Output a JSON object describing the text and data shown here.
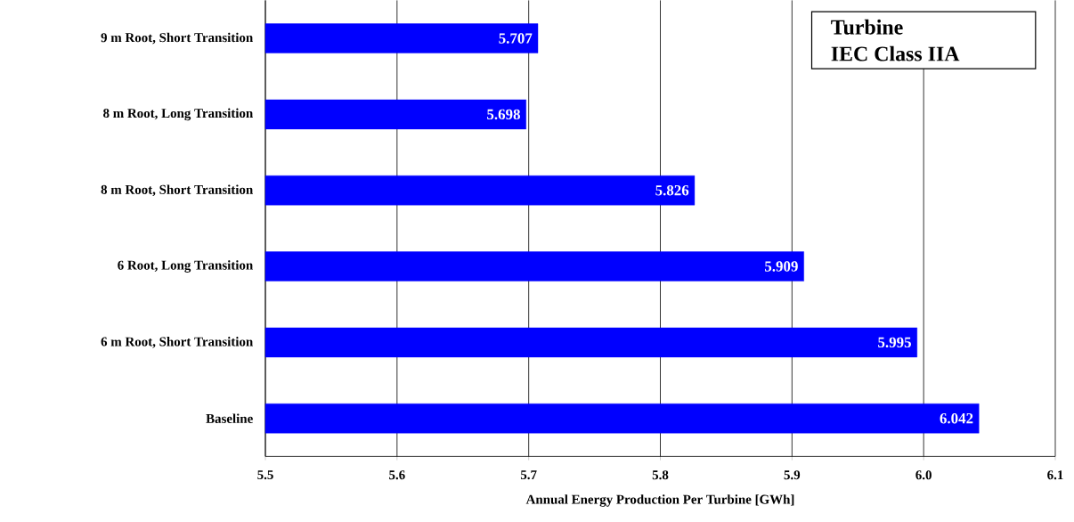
{
  "chart_data": {
    "type": "bar",
    "orientation": "horizontal",
    "xlabel": "Annual Energy Production Per Turbine [GWh]",
    "categories": [
      "9 m Root, Short Transition",
      "8 m Root, Long Transition",
      "8 m Root, Short Transition",
      "6 Root, Long Transition",
      "6 m Root, Short Transition",
      "Baseline"
    ],
    "values": [
      5.707,
      5.698,
      5.826,
      5.909,
      5.995,
      6.042
    ],
    "color": "#0000ff",
    "data_labels": true,
    "grid": "x",
    "xlim": [
      5.5,
      6.1
    ],
    "xticks": [
      {
        "value": 5.5,
        "label": "5.5"
      },
      {
        "value": 5.6,
        "label": "5.6"
      },
      {
        "value": 5.7,
        "label": "5.7"
      },
      {
        "value": 5.8,
        "label": "5.8"
      },
      {
        "value": 5.9,
        "label": "5.9"
      },
      {
        "value": 6.0,
        "label": "6.0"
      },
      {
        "value": 6.1,
        "label": "6.1"
      }
    ],
    "annotations": [
      "Turbine",
      "IEC Class IIA"
    ]
  }
}
